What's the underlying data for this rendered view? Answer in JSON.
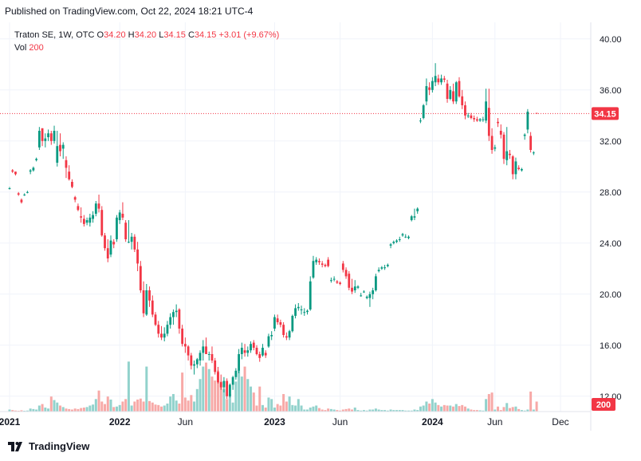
{
  "published_text": "Published on TradingView.com, Oct 22, 2024 18:21 UTC-4",
  "brand_text": "TradingView",
  "legend": {
    "symbol": "Traton SE, 1W, OTC",
    "o_label": "O",
    "o": "34.20",
    "h_label": "H",
    "h": "34.20",
    "l_label": "L",
    "l": "34.15",
    "c_label": "C",
    "c": "34.15",
    "change": "+3.01 (+9.67%)",
    "vol_label": "Vol",
    "vol": "200"
  },
  "colors": {
    "up": "#089981",
    "down": "#f23645",
    "vol_up": "#92d2cc",
    "vol_down": "#f7a9a7",
    "grid": "#f0f3fa",
    "text": "#131722",
    "axis": "#e0e3eb"
  },
  "chart_data": {
    "type": "candlestick",
    "title": "Traton SE, 1W, OTC",
    "y_ticks": [
      "40.00",
      "36.00",
      "32.00",
      "28.00",
      "24.00",
      "20.00",
      "16.00",
      "12.00"
    ],
    "y_tick_values": [
      40,
      36,
      32,
      28,
      24,
      20,
      16,
      12
    ],
    "ylim": [
      10.8,
      41.3
    ],
    "x_ticks": [
      "2021",
      "2022",
      "Jun",
      "2023",
      "Jun",
      "2024",
      "Jun",
      "Dec"
    ],
    "x_tick_week_index": [
      0,
      37,
      59,
      89,
      111,
      142,
      163,
      185
    ],
    "x_tick_bold": [
      true,
      true,
      false,
      true,
      false,
      true,
      false,
      false
    ],
    "last_price": "34.15",
    "last_price_value": 34.15,
    "last_volume": "200",
    "vol_max": 1500,
    "candles": [
      [
        28.3,
        28.4,
        28.2,
        28.3,
        40
      ],
      [
        29.7,
        29.8,
        29.5,
        29.6,
        30
      ],
      [
        29.6,
        29.6,
        29.3,
        29.4,
        20
      ],
      [
        27.9,
        28.0,
        27.7,
        27.8,
        15
      ],
      [
        27.4,
        27.5,
        27.1,
        27.2,
        25
      ],
      [
        27.8,
        27.9,
        27.7,
        27.8,
        10
      ],
      [
        28.0,
        28.1,
        27.9,
        28.0,
        20
      ],
      [
        29.6,
        29.8,
        29.4,
        29.7,
        60
      ],
      [
        29.7,
        30.0,
        29.6,
        29.9,
        50
      ],
      [
        30.5,
        30.7,
        30.4,
        30.6,
        40
      ],
      [
        31.5,
        33.1,
        31.3,
        32.8,
        120
      ],
      [
        33.0,
        33.0,
        31.6,
        32.0,
        150
      ],
      [
        32.0,
        32.6,
        31.5,
        32.2,
        80
      ],
      [
        32.3,
        32.9,
        32.0,
        32.6,
        60
      ],
      [
        32.6,
        32.8,
        31.7,
        32.0,
        300
      ],
      [
        32.0,
        33.2,
        31.8,
        32.8,
        230
      ],
      [
        30.3,
        32.8,
        30.0,
        31.6,
        180
      ],
      [
        31.7,
        32.6,
        30.8,
        31.2,
        120
      ],
      [
        31.4,
        31.9,
        30.6,
        31.7,
        90
      ],
      [
        30.5,
        30.8,
        29.1,
        29.9,
        60
      ],
      [
        29.6,
        30.1,
        28.9,
        29.0,
        50
      ],
      [
        28.8,
        29.0,
        28.3,
        28.4,
        40
      ],
      [
        27.6,
        27.7,
        27.2,
        27.4,
        60
      ],
      [
        26.9,
        27.1,
        26.5,
        26.6,
        50
      ],
      [
        26.1,
        26.8,
        25.6,
        26.0,
        70
      ],
      [
        25.9,
        26.2,
        25.3,
        25.5,
        80
      ],
      [
        25.6,
        26.0,
        25.4,
        25.8,
        90
      ],
      [
        25.6,
        26.3,
        25.3,
        26.0,
        120
      ],
      [
        25.9,
        26.5,
        25.6,
        26.2,
        140
      ],
      [
        26.3,
        27.3,
        26.1,
        27.1,
        250
      ],
      [
        27.1,
        27.8,
        26.4,
        26.7,
        420
      ],
      [
        26.6,
        26.9,
        24.5,
        24.6,
        200
      ],
      [
        24.6,
        24.8,
        23.4,
        23.6,
        150
      ],
      [
        23.6,
        24.3,
        22.5,
        22.8,
        300
      ],
      [
        23.1,
        24.6,
        22.9,
        24.2,
        240
      ],
      [
        24.1,
        24.3,
        23.6,
        23.9,
        90
      ],
      [
        24.3,
        26.2,
        24.1,
        26.0,
        100
      ],
      [
        25.8,
        26.6,
        25.5,
        26.4,
        130
      ],
      [
        26.3,
        27.2,
        25.8,
        26.0,
        200
      ],
      [
        25.6,
        25.8,
        24.1,
        24.3,
        250
      ],
      [
        24.1,
        25.8,
        24.0,
        24.1,
        1000
      ],
      [
        24.1,
        24.8,
        23.5,
        24.5,
        120
      ],
      [
        24.5,
        24.7,
        23.3,
        23.5,
        200
      ],
      [
        23.5,
        24.1,
        21.8,
        22.4,
        240
      ],
      [
        22.2,
        22.6,
        20.1,
        20.3,
        260
      ],
      [
        20.3,
        21.0,
        18.2,
        18.5,
        200
      ],
      [
        18.4,
        20.8,
        18.3,
        20.3,
        900
      ],
      [
        20.3,
        20.6,
        19.0,
        19.5,
        210
      ],
      [
        19.5,
        19.9,
        18.2,
        18.4,
        180
      ],
      [
        18.4,
        18.6,
        17.5,
        17.6,
        140
      ],
      [
        17.6,
        17.9,
        16.6,
        16.9,
        130
      ],
      [
        16.9,
        17.5,
        16.4,
        16.6,
        100
      ],
      [
        16.6,
        17.4,
        16.3,
        16.9,
        120
      ],
      [
        16.9,
        17.9,
        16.7,
        17.6,
        160
      ],
      [
        17.6,
        18.5,
        17.3,
        18.2,
        300
      ],
      [
        18.2,
        18.8,
        17.6,
        18.6,
        350
      ],
      [
        18.6,
        19.2,
        18.2,
        18.7,
        220
      ],
      [
        18.8,
        18.9,
        16.9,
        17.3,
        160
      ],
      [
        17.3,
        17.6,
        15.9,
        16.1,
        780
      ],
      [
        16.1,
        16.6,
        15.4,
        15.9,
        280
      ],
      [
        15.9,
        16.0,
        14.8,
        15.2,
        220
      ],
      [
        15.2,
        15.4,
        14.1,
        14.4,
        330
      ],
      [
        14.4,
        14.8,
        13.7,
        14.5,
        200
      ],
      [
        14.5,
        15.0,
        14.2,
        14.9,
        450
      ],
      [
        14.8,
        15.6,
        14.4,
        15.4,
        650
      ],
      [
        15.4,
        16.4,
        14.8,
        15.9,
        900
      ],
      [
        15.9,
        16.6,
        15.3,
        15.3,
        980
      ],
      [
        15.3,
        15.5,
        14.8,
        15.3,
        850
      ],
      [
        15.3,
        15.9,
        14.6,
        14.8,
        700
      ],
      [
        14.8,
        15.0,
        13.7,
        13.9,
        620
      ],
      [
        13.9,
        14.3,
        13.0,
        13.1,
        820
      ],
      [
        13.1,
        13.7,
        12.5,
        12.7,
        600
      ],
      [
        12.7,
        13.5,
        12.3,
        13.2,
        450
      ],
      [
        13.2,
        13.4,
        11.8,
        12.0,
        250
      ],
      [
        12.0,
        13.0,
        11.9,
        12.9,
        350
      ],
      [
        12.9,
        13.6,
        12.5,
        13.5,
        180
      ],
      [
        13.5,
        14.2,
        13.3,
        14.0,
        600
      ],
      [
        14.0,
        15.7,
        13.8,
        15.3,
        820
      ],
      [
        15.3,
        16.2,
        14.9,
        15.8,
        700
      ],
      [
        15.6,
        16.1,
        15.1,
        15.4,
        900
      ],
      [
        15.4,
        15.9,
        15.1,
        15.6,
        650
      ],
      [
        15.6,
        16.3,
        15.4,
        16.1,
        500
      ],
      [
        16.2,
        16.4,
        15.6,
        15.8,
        380
      ],
      [
        15.8,
        16.0,
        15.2,
        15.3,
        120
      ],
      [
        15.3,
        15.5,
        14.7,
        15.0,
        500
      ],
      [
        15.2,
        16.1,
        15.1,
        15.8,
        130
      ],
      [
        15.4,
        15.6,
        15.0,
        15.2,
        80
      ],
      [
        15.9,
        16.9,
        15.8,
        16.7,
        280
      ],
      [
        16.7,
        17.1,
        16.4,
        16.8,
        250
      ],
      [
        17.3,
        18.4,
        17.1,
        18.2,
        80
      ],
      [
        18.1,
        18.4,
        17.6,
        17.8,
        150
      ],
      [
        17.8,
        18.0,
        17.4,
        17.6,
        120
      ],
      [
        17.6,
        17.8,
        16.6,
        16.8,
        350
      ],
      [
        16.7,
        17.0,
        16.4,
        16.6,
        200
      ],
      [
        16.6,
        17.2,
        16.4,
        17.1,
        300
      ],
      [
        17.1,
        18.4,
        17.0,
        18.3,
        130
      ],
      [
        18.3,
        19.2,
        18.1,
        18.9,
        120
      ],
      [
        18.9,
        19.3,
        18.7,
        19.0,
        250
      ],
      [
        18.8,
        19.1,
        18.4,
        18.8,
        120
      ],
      [
        18.6,
        18.9,
        18.3,
        18.6,
        40
      ],
      [
        18.6,
        18.8,
        18.4,
        18.7,
        40
      ],
      [
        18.8,
        21.4,
        18.7,
        21.0,
        80
      ],
      [
        21.3,
        23.0,
        21.2,
        22.6,
        100
      ],
      [
        22.5,
        22.9,
        22.3,
        22.7,
        120
      ],
      [
        22.6,
        22.8,
        22.3,
        22.5,
        70
      ],
      [
        22.4,
        22.6,
        22.1,
        22.3,
        40
      ],
      [
        22.3,
        22.4,
        22.1,
        22.2,
        30
      ],
      [
        22.7,
        22.9,
        22.1,
        22.2,
        60
      ],
      [
        21.1,
        21.3,
        20.9,
        21.1,
        50
      ],
      [
        21.2,
        21.4,
        21.0,
        21.2,
        40
      ],
      [
        21.0,
        21.1,
        20.8,
        20.9,
        30
      ],
      [
        20.9,
        21.0,
        20.7,
        20.8,
        20
      ],
      [
        22.4,
        22.6,
        21.7,
        21.9,
        40
      ],
      [
        21.9,
        22.1,
        21.2,
        21.4,
        50
      ],
      [
        21.6,
        21.8,
        20.3,
        20.5,
        60
      ],
      [
        20.5,
        21.2,
        20.0,
        20.2,
        40
      ],
      [
        20.3,
        21.1,
        20.1,
        20.6,
        80
      ],
      [
        20.5,
        20.7,
        20.4,
        20.6,
        30
      ],
      [
        19.9,
        20.1,
        19.8,
        19.9,
        20
      ],
      [
        20.2,
        20.3,
        20.1,
        20.2,
        30
      ],
      [
        19.7,
        19.9,
        19.6,
        19.8,
        20
      ],
      [
        19.7,
        20.2,
        19.0,
        20.0,
        40
      ],
      [
        20.0,
        20.5,
        19.6,
        20.3,
        40
      ],
      [
        20.3,
        21.6,
        20.2,
        21.4,
        60
      ],
      [
        21.8,
        22.1,
        21.7,
        21.9,
        40
      ],
      [
        22.0,
        22.2,
        21.9,
        22.1,
        30
      ],
      [
        22.1,
        22.3,
        21.9,
        22.1,
        30
      ],
      [
        22.2,
        22.4,
        22.1,
        22.3,
        20
      ],
      [
        23.8,
        24.0,
        23.6,
        23.9,
        40
      ],
      [
        24.0,
        24.2,
        23.9,
        24.1,
        30
      ],
      [
        24.1,
        24.3,
        24.0,
        24.2,
        30
      ],
      [
        24.3,
        24.5,
        24.1,
        24.3,
        30
      ],
      [
        24.6,
        24.8,
        24.5,
        24.7,
        30
      ],
      [
        24.5,
        24.7,
        24.4,
        24.5,
        20
      ],
      [
        24.4,
        24.6,
        24.3,
        24.5,
        20
      ],
      [
        25.8,
        26.2,
        25.7,
        26.1,
        20
      ],
      [
        26.0,
        26.7,
        25.8,
        26.1,
        40
      ],
      [
        26.5,
        26.8,
        26.3,
        26.7,
        30
      ],
      [
        33.6,
        33.8,
        33.4,
        33.6,
        100
      ],
      [
        33.8,
        34.9,
        33.7,
        34.8,
        120
      ],
      [
        35.1,
        36.9,
        34.8,
        36.3,
        200
      ],
      [
        36.2,
        36.6,
        35.6,
        36.0,
        160
      ],
      [
        36.0,
        37.0,
        35.8,
        36.7,
        250
      ],
      [
        36.6,
        38.1,
        36.3,
        37.1,
        180
      ],
      [
        36.9,
        37.2,
        36.4,
        36.6,
        130
      ],
      [
        36.6,
        37.2,
        36.4,
        36.9,
        100
      ],
      [
        36.9,
        37.1,
        36.6,
        36.8,
        130
      ],
      [
        36.5,
        36.8,
        35.0,
        35.3,
        120
      ],
      [
        35.3,
        36.3,
        35.2,
        36.0,
        120
      ],
      [
        35.9,
        36.5,
        34.9,
        35.1,
        100
      ],
      [
        35.1,
        36.7,
        34.9,
        36.6,
        150
      ],
      [
        36.7,
        37.0,
        35.4,
        35.5,
        110
      ],
      [
        35.5,
        36.0,
        34.5,
        34.8,
        130
      ],
      [
        34.8,
        35.1,
        33.7,
        34.0,
        100
      ],
      [
        34.0,
        34.2,
        33.8,
        34.0,
        60
      ],
      [
        34.0,
        34.2,
        33.7,
        33.8,
        40
      ],
      [
        33.8,
        34.0,
        33.5,
        33.7,
        30
      ],
      [
        33.7,
        33.9,
        33.5,
        33.6,
        30
      ],
      [
        33.6,
        33.8,
        33.5,
        33.7,
        25
      ],
      [
        33.7,
        33.9,
        33.5,
        33.7,
        20
      ],
      [
        33.6,
        36.1,
        33.4,
        35.1,
        250
      ],
      [
        34.6,
        36.1,
        32.0,
        32.4,
        350
      ],
      [
        32.4,
        33.0,
        31.0,
        31.3,
        380
      ],
      [
        31.4,
        31.7,
        31.2,
        31.5,
        40
      ],
      [
        33.5,
        33.8,
        33.1,
        33.4,
        100
      ],
      [
        32.8,
        33.3,
        32.2,
        32.5,
        30
      ],
      [
        32.5,
        32.7,
        30.2,
        30.6,
        90
      ],
      [
        30.5,
        33.1,
        30.1,
        31.2,
        170
      ],
      [
        31.0,
        31.3,
        30.6,
        30.9,
        70
      ],
      [
        30.8,
        30.9,
        29.0,
        29.4,
        90
      ],
      [
        29.4,
        30.7,
        29.0,
        30.4,
        100
      ],
      [
        29.9,
        30.1,
        29.7,
        29.8,
        50
      ],
      [
        29.7,
        29.9,
        29.6,
        29.8,
        30
      ],
      [
        32.4,
        32.6,
        32.1,
        32.5,
        20
      ],
      [
        32.9,
        34.5,
        32.6,
        34.3,
        40
      ],
      [
        32.4,
        32.7,
        31.1,
        31.3,
        400
      ],
      [
        31.1,
        31.2,
        30.9,
        31.1,
        40
      ],
      [
        34.2,
        34.2,
        34.15,
        34.15,
        200
      ]
    ]
  }
}
